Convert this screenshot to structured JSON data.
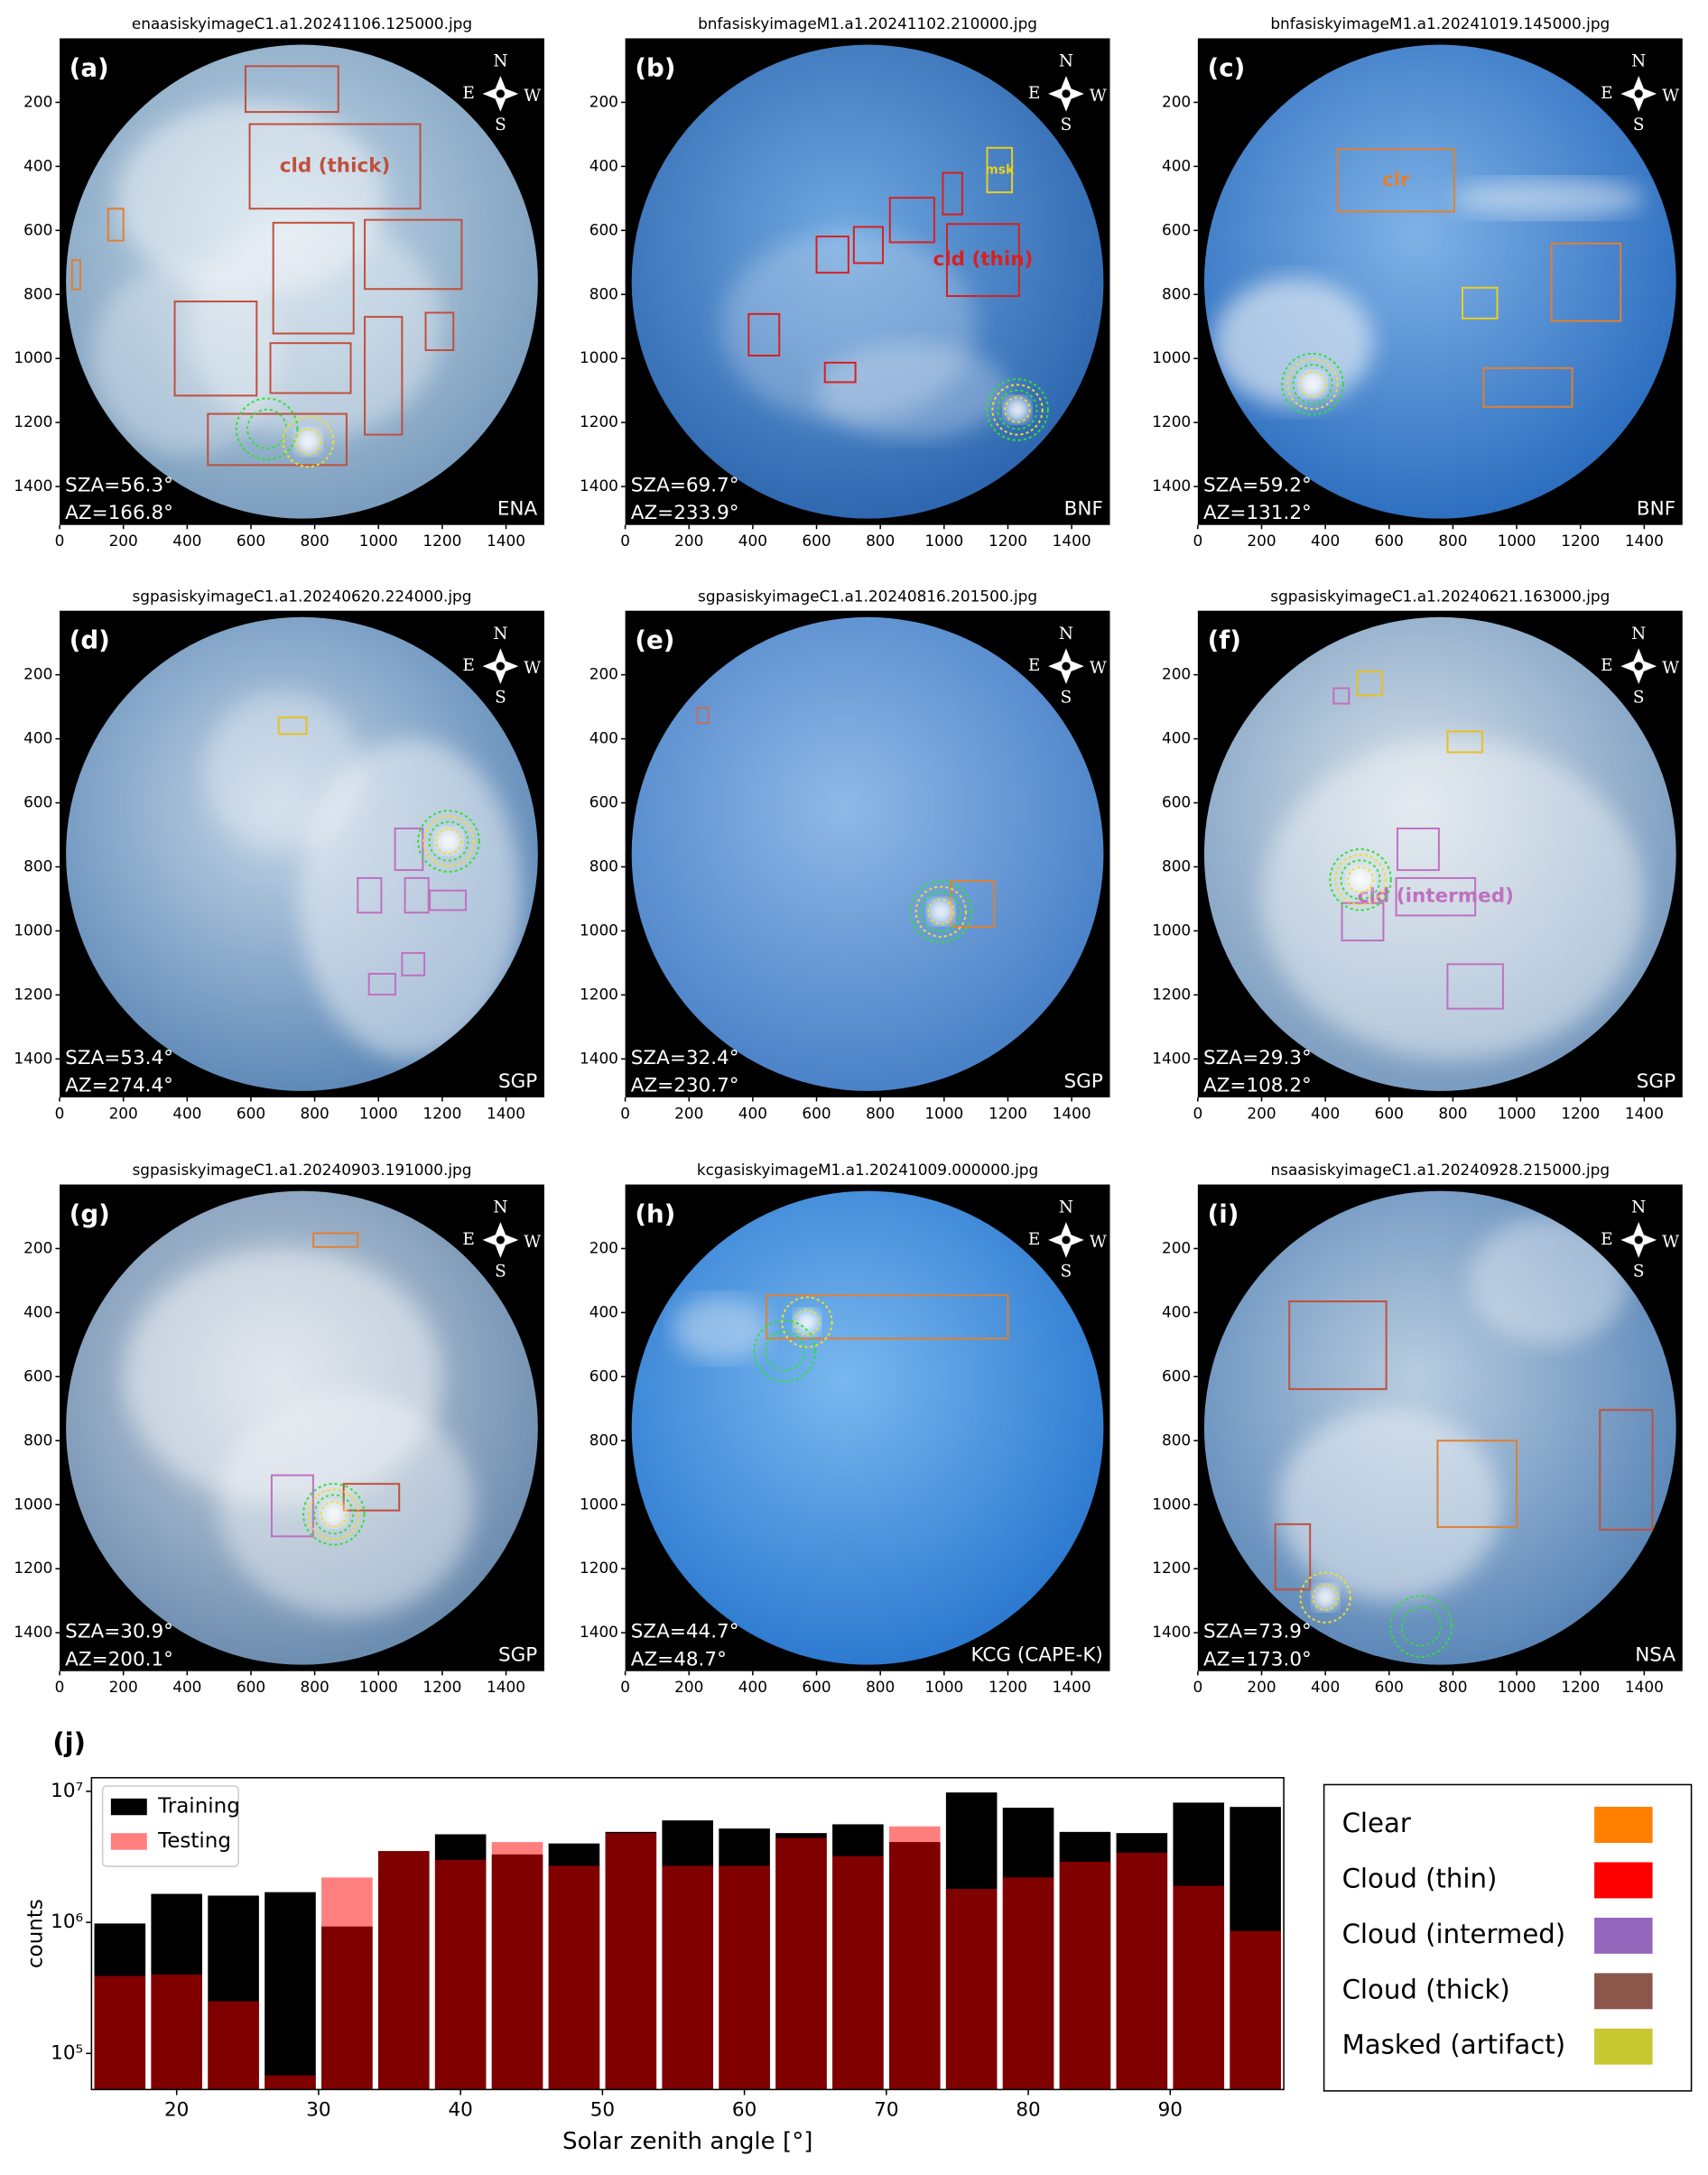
{
  "panel_axes": {
    "xlim": [
      0,
      1520
    ],
    "ylim": [
      0,
      1520
    ],
    "xticks": [
      0,
      200,
      400,
      600,
      800,
      1000,
      1200,
      1400
    ],
    "yticks": [
      200,
      400,
      600,
      800,
      1000,
      1200,
      1400
    ]
  },
  "compass": [
    "N",
    "E",
    "W",
    "S"
  ],
  "panels": [
    {
      "title": "enaasiskyimageC1.a1.20241106.125000.jpg",
      "label": "(a)",
      "sza": "SZA=56.3°",
      "az": "AZ=166.8°",
      "site": "ENA",
      "notes": [
        "cld (thick)"
      ]
    },
    {
      "title": "bnfasiskyimageM1.a1.20241102.210000.jpg",
      "label": "(b)",
      "sza": "SZA=69.7°",
      "az": "AZ=233.9°",
      "site": "BNF",
      "notes": [
        "msk",
        "cld (thin)"
      ]
    },
    {
      "title": "bnfasiskyimageM1.a1.20241019.145000.jpg",
      "label": "(c)",
      "sza": "SZA=59.2°",
      "az": "AZ=131.2°",
      "site": "BNF",
      "notes": [
        "clr"
      ]
    },
    {
      "title": "sgpasiskyimageC1.a1.20240620.224000.jpg",
      "label": "(d)",
      "sza": "SZA=53.4°",
      "az": "AZ=274.4°",
      "site": "SGP",
      "notes": []
    },
    {
      "title": "sgpasiskyimageC1.a1.20240816.201500.jpg",
      "label": "(e)",
      "sza": "SZA=32.4°",
      "az": "AZ=230.7°",
      "site": "SGP",
      "notes": []
    },
    {
      "title": "sgpasiskyimageC1.a1.20240621.163000.jpg",
      "label": "(f)",
      "sza": "SZA=29.3°",
      "az": "AZ=108.2°",
      "site": "SGP",
      "notes": [
        "cld (intermed)"
      ]
    },
    {
      "title": "sgpasiskyimageC1.a1.20240903.191000.jpg",
      "label": "(g)",
      "sza": "SZA=30.9°",
      "az": "AZ=200.1°",
      "site": "SGP",
      "notes": []
    },
    {
      "title": "kcgasiskyimageM1.a1.20241009.000000.jpg",
      "label": "(h)",
      "sza": "SZA=44.7°",
      "az": "AZ=48.7°",
      "site": "KCG (CAPE-K)",
      "notes": []
    },
    {
      "title": "nsaasiskyimageC1.a1.20240928.215000.jpg",
      "label": "(i)",
      "sza": "SZA=73.9°",
      "az": "AZ=173.0°",
      "site": "NSA",
      "notes": []
    }
  ],
  "chart_data": {
    "type": "histogram",
    "panel_label": "(j)",
    "x_label": "Solar zenith angle [°]",
    "y_label": "counts",
    "yscale": "log",
    "bins": [
      14,
      18,
      22,
      26,
      30,
      34,
      38,
      42,
      46,
      50,
      54,
      58,
      62,
      66,
      70,
      74,
      78,
      82,
      86,
      90,
      94,
      98
    ],
    "series": [
      {
        "name": "Training",
        "color": "#000000",
        "values": [
          980000,
          1650000,
          1600000,
          1700000,
          930000,
          3500000,
          4700000,
          3300000,
          4000000,
          4900000,
          6000000,
          5200000,
          4800000,
          5600000,
          4100000,
          9800000,
          7500000,
          4900000,
          4800000,
          8200000,
          7600000
        ]
      },
      {
        "name": "Testing",
        "color": "#ff0000",
        "values": [
          390000,
          400000,
          250000,
          68000,
          2200000,
          3500000,
          3000000,
          4100000,
          2700000,
          4800000,
          2700000,
          2700000,
          4400000,
          3200000,
          5400000,
          1800000,
          2200000,
          2900000,
          3400000,
          1900000,
          860000
        ]
      }
    ],
    "xlim": [
      14,
      98
    ],
    "ylim": [
      53000,
      12700000
    ],
    "xticks": [
      20,
      30,
      40,
      50,
      60,
      70,
      80,
      90
    ],
    "yticks": [
      {
        "value": 100000,
        "label": "10⁵"
      },
      {
        "value": 1000000,
        "label": "10⁶"
      },
      {
        "value": 10000000,
        "label": "10⁷"
      }
    ],
    "legend": "upper left"
  },
  "class_legend": [
    {
      "name": "Clear",
      "color": "#ff8000"
    },
    {
      "name": "Cloud (thin)",
      "color": "#ff0000"
    },
    {
      "name": "Cloud (intermed)",
      "color": "#9467bd"
    },
    {
      "name": "Cloud (thick)",
      "color": "#8c564b"
    },
    {
      "name": "Masked (artifact)",
      "color": "#c8c832"
    }
  ]
}
